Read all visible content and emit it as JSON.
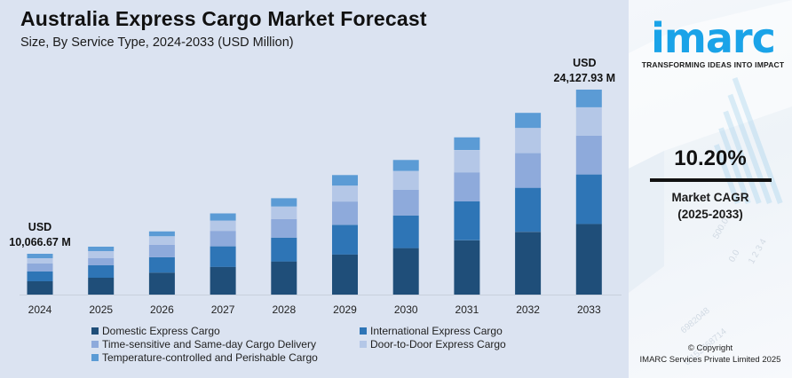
{
  "header": {
    "title": "Australia Express Cargo Market Forecast",
    "subtitle": "Size, By Service Type, 2024-2033 (USD Million)"
  },
  "chart_data": {
    "type": "bar",
    "stacked": true,
    "title": "Australia Express Cargo Market Forecast",
    "subtitle": "Size, By Service Type, 2024-2033 (USD Million)",
    "xlabel": "",
    "ylabel": "USD Million",
    "grid": false,
    "legend_position": "bottom",
    "categories": [
      "2024",
      "2025",
      "2026",
      "2027",
      "2028",
      "2029",
      "2030",
      "2031",
      "2032",
      "2033"
    ],
    "series": [
      {
        "name": "Domestic Express Cargo",
        "color": "#1f4e79",
        "values": [
          3283,
          3756,
          4175,
          4623,
          5101,
          5651,
          6255,
          6926,
          7646,
          8320
        ]
      },
      {
        "name": "International Express Cargo",
        "color": "#2e75b6",
        "values": [
          2407,
          2768,
          2904,
          3424,
          3666,
          4164,
          4392,
          4947,
          5364,
          5824
        ]
      },
      {
        "name": "Time-sensitive and Same-day Cargo Delivery",
        "color": "#8eaadb",
        "values": [
          1970,
          1582,
          2360,
          2568,
          2869,
          3272,
          3460,
          3710,
          4223,
          4576
        ]
      },
      {
        "name": "Door-to-Door Express Cargo",
        "color": "#b4c7e7",
        "values": [
          1313,
          1582,
          1634,
          1712,
          1913,
          2231,
          2529,
          2845,
          3081,
          3328
        ]
      },
      {
        "name": "Temperature-controlled and Perishable Cargo",
        "color": "#5b9bd5",
        "values": [
          1094,
          989,
          908,
          1198,
          1275,
          1487,
          1464,
          1608,
          1826,
          2080
        ]
      }
    ],
    "totals": [
      10066.67,
      10677,
      11981,
      13525,
      14824,
      16805,
      18100,
      20036,
      22140,
      24127.93
    ],
    "annotations": [
      {
        "category": "2024",
        "lines": [
          "USD",
          "10,066.67 M"
        ]
      },
      {
        "category": "2033",
        "lines": [
          "USD",
          "24,127.93 M"
        ]
      }
    ]
  },
  "legend": {
    "items": [
      {
        "label": "Domestic Express Cargo",
        "color": "#1f4e79"
      },
      {
        "label": "International Express Cargo",
        "color": "#2e75b6"
      },
      {
        "label": "Time-sensitive and Same-day Cargo Delivery",
        "color": "#8eaadb"
      },
      {
        "label": "Door-to-Door Express Cargo",
        "color": "#b4c7e7"
      },
      {
        "label": "Temperature-controlled and Perishable Cargo",
        "color": "#5b9bd5"
      }
    ]
  },
  "sidebar": {
    "logo_text": "imarc",
    "tagline": "TRANSFORMING IDEAS INTO IMPACT",
    "cagr_value": "10.20%",
    "cagr_label": "Market CAGR",
    "cagr_period": "(2025-2033)",
    "copyright_line1": "© Copyright",
    "copyright_line2": "IMARC Services Private Limited 2025",
    "brand_color": "#1aa3e8"
  }
}
